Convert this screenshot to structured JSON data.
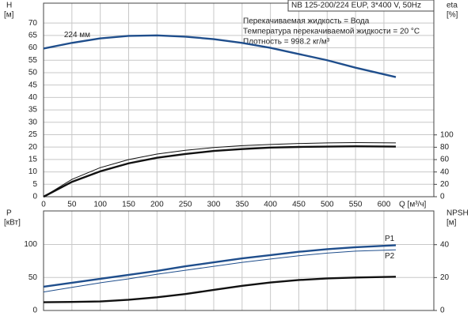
{
  "chart_data": [
    {
      "type": "line",
      "header": "NB 125-200/224 EUP, 3*400 V, 50Hz",
      "info": [
        "Перекачиваемая жидкость = Вода",
        "Температура перекачиваемой жидкости = 20 °C",
        "Плотность = 998.2 кг/м³"
      ],
      "ylabel": [
        "H",
        "[м]"
      ],
      "y2label": [
        "eta",
        "[%]"
      ],
      "xlabel": "Q [м³/ч]",
      "x": [
        0,
        50,
        100,
        150,
        200,
        250,
        300,
        350,
        400,
        450,
        500,
        550,
        621
      ],
      "xlim": [
        0,
        688
      ],
      "xticks": [
        0,
        50,
        100,
        150,
        200,
        250,
        300,
        350,
        400,
        450,
        500,
        550,
        600
      ],
      "ylim": [
        0,
        78
      ],
      "yticks": [
        0,
        5,
        10,
        15,
        20,
        25,
        30,
        35,
        40,
        45,
        50,
        55,
        60,
        65,
        70
      ],
      "y2lim": [
        0,
        313
      ],
      "y2ticks": [
        0,
        20,
        40,
        60,
        80,
        100
      ],
      "grid": true,
      "series": [
        {
          "name": "224 мм",
          "color": "#1f4e8c",
          "line_style": "thick",
          "values": [
            59.7,
            62,
            63.8,
            64.8,
            65,
            64.5,
            63.5,
            62,
            60,
            57.5,
            55,
            52,
            48.2
          ]
        },
        {
          "color": "#111111",
          "line_style": "thin",
          "axis": "y2",
          "values": [
            0,
            28,
            47,
            60,
            69,
            75,
            79.5,
            82.5,
            84.5,
            86,
            87,
            87.5,
            87
          ]
        },
        {
          "color": "#111111",
          "line_style": "thick",
          "axis": "y2",
          "values": [
            0,
            24,
            41,
            54,
            63,
            69,
            74,
            77,
            79.5,
            80.5,
            81,
            81.5,
            81
          ]
        }
      ]
    },
    {
      "type": "line",
      "ylabel": [
        "P",
        "[кВт]"
      ],
      "y2label": [
        "NPSH",
        "[м]"
      ],
      "x": [
        0,
        50,
        100,
        150,
        200,
        250,
        300,
        350,
        400,
        450,
        500,
        550,
        621
      ],
      "xlim": [
        0,
        688
      ],
      "xticks": [
        0,
        50,
        100,
        150,
        200,
        250,
        300,
        350,
        400,
        450,
        500,
        550,
        600
      ],
      "ylim": [
        0,
        151
      ],
      "yticks": [
        0,
        50,
        100
      ],
      "y2lim": [
        0,
        60.5
      ],
      "y2ticks": [
        0,
        20,
        40
      ],
      "grid": true,
      "series": [
        {
          "name": "P1",
          "color": "#1f4e8c",
          "line_style": "thick",
          "values": [
            36,
            42,
            48,
            54,
            60,
            67,
            73,
            79,
            84,
            89,
            93,
            96,
            99
          ]
        },
        {
          "name": "P2",
          "color": "#1f4e8c",
          "line_style": "thin",
          "values": [
            28,
            35,
            42,
            48,
            55,
            61,
            67,
            73,
            78,
            83,
            87,
            90,
            92
          ]
        },
        {
          "color": "#111111",
          "line_style": "thick",
          "axis": "y2",
          "values": [
            5,
            5.2,
            5.5,
            6.5,
            8,
            10,
            12.5,
            15,
            17,
            18.5,
            19.5,
            20,
            20.5
          ]
        }
      ]
    }
  ]
}
